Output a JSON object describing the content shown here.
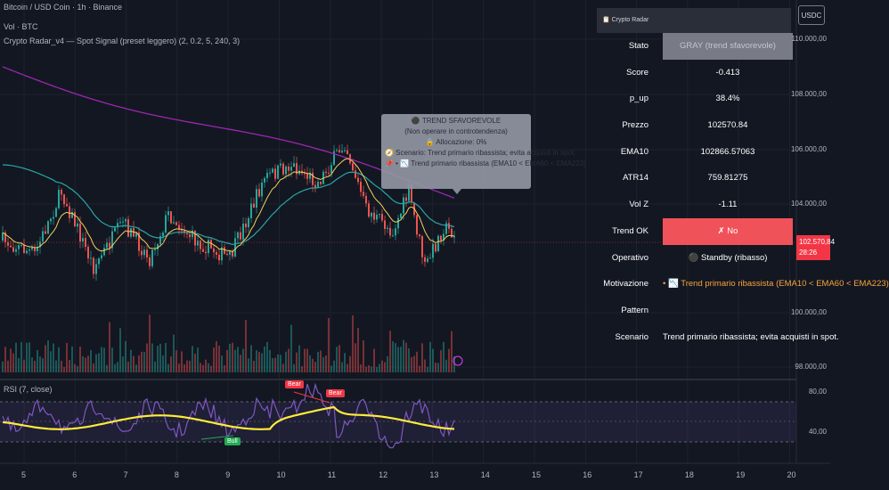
{
  "legend": {
    "title": "Bitcoin / USD Coin · 1h · Binance",
    "vol": "Vol · BTC",
    "indicator": "Crypto Radar_v4 — Spot Signal (preset leggero) (2, 0.2, 5, 240, 3)",
    "rsi": "RSI (7, close)"
  },
  "tooltip": {
    "line1": "⚫ TREND SFAVOREVOLE",
    "line2": "(Non operare in controtendenza)",
    "line3": "🔒 Allocazione: 0%",
    "line4": "🧭 Scenario: Trend primario ribassista; evita acquisti in spot.",
    "line5": "📌 • 📉 Trend primario ribassista (EMA10 < EMA60 < EMA223)"
  },
  "panel": {
    "title": "📋 Crypto Radar",
    "rows": [
      {
        "k": "Stato",
        "v": "GRAY (trend sfavorevole)"
      },
      {
        "k": "Score",
        "v": "-0.413"
      },
      {
        "k": "p_up",
        "v": "38.4%"
      },
      {
        "k": "Prezzo",
        "v": "102570.84"
      },
      {
        "k": "EMA10",
        "v": "102866.57063"
      },
      {
        "k": "ATR14",
        "v": "759.81275"
      },
      {
        "k": "Vol Z",
        "v": "-1.11"
      },
      {
        "k": "Trend OK",
        "v": "✗ No"
      },
      {
        "k": "Operativo",
        "v": "⚫ Standby (ribasso)"
      },
      {
        "k": "Motivazione",
        "v": "• 📉 Trend primario ribassista (EMA10 < EMA60 < EMA223)"
      },
      {
        "k": "Pattern",
        "v": ""
      },
      {
        "k": "Scenario",
        "v": "Trend primario ribassista; evita acquisti in spot."
      }
    ]
  },
  "price_axis": {
    "currency": "USDC",
    "ticks": [
      "110.000,00",
      "108.000,00",
      "106.000,00",
      "104.000,00",
      "100.000,00",
      "98.000,00"
    ],
    "last_price": "102.570,84",
    "countdown": "28:26"
  },
  "rsi_axis": {
    "ticks": [
      "80,00",
      "40,00"
    ]
  },
  "x_axis": {
    "ticks": [
      "5",
      "6",
      "7",
      "8",
      "9",
      "10",
      "11",
      "12",
      "13",
      "14",
      "15",
      "16",
      "17",
      "18",
      "19",
      "20"
    ]
  },
  "labels": {
    "bear1": "Bear",
    "bear2": "Bear",
    "bull": "Bull"
  },
  "colors": {
    "background": "#131722",
    "ema_short": "#f2d15c",
    "ema_mid": "#26a6a6",
    "ema_long": "#9c27b0",
    "up": "#26a69a",
    "down": "#ef5350",
    "rsi": "#7e57c2",
    "rsi_ma": "#ffeb3b"
  }
}
